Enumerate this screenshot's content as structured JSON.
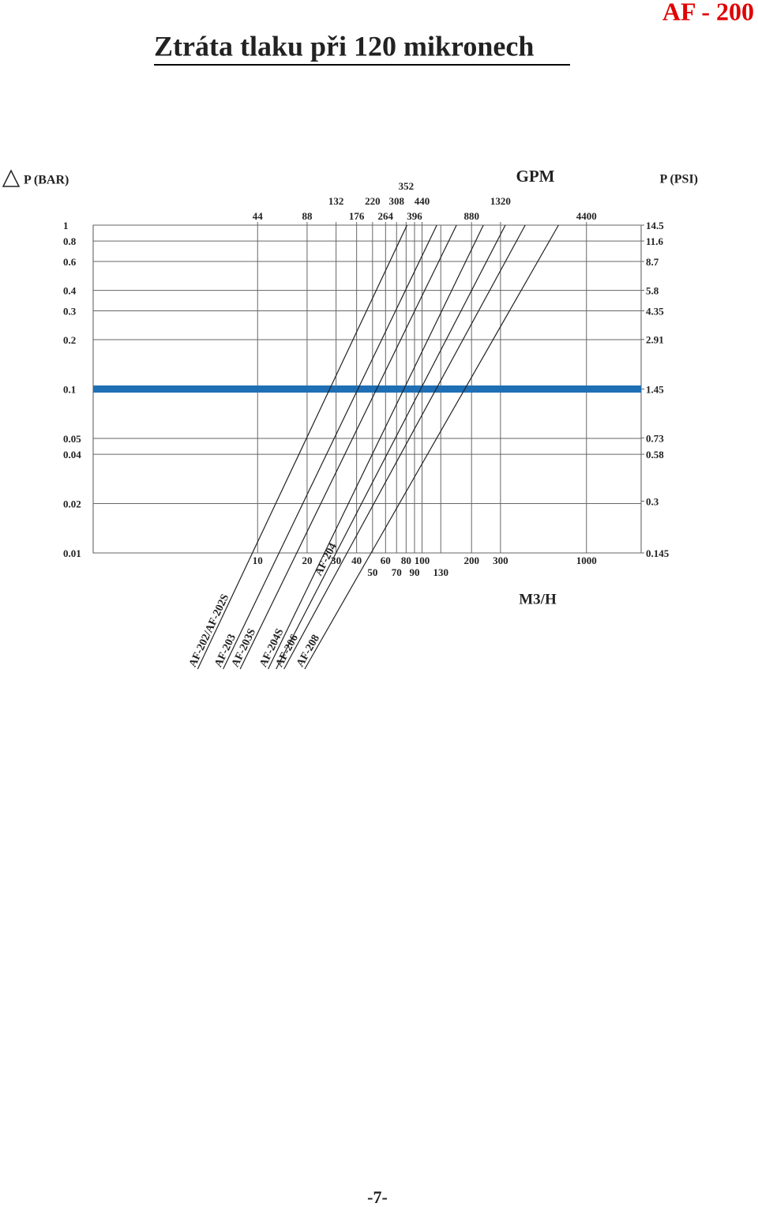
{
  "header": {
    "title": "Ztráta tlaku při 120 mikronech",
    "badge": "AF - 200"
  },
  "footer": {
    "page": "-7-"
  },
  "chart_data": {
    "type": "line",
    "y_label": "P (BAR)",
    "y2_label": "P (PSI)",
    "x_label": "M3/H",
    "x2_label": "GPM",
    "log_x": true,
    "log_y": true,
    "grid": true,
    "xlim": [
      1,
      2150
    ],
    "x2lim": [
      4.4,
      9460
    ],
    "ylim": [
      0.01,
      1
    ],
    "y2lim": [
      0.145,
      14.5
    ],
    "xticks": [
      10,
      20,
      30,
      40,
      50,
      60,
      70,
      80,
      90,
      100,
      130,
      200,
      300,
      1000
    ],
    "x2ticks": [
      44,
      88,
      132,
      176,
      220,
      264,
      308,
      352,
      396,
      440,
      880,
      1320,
      4400
    ],
    "yticks": [
      1,
      0.8,
      0.6,
      0.4,
      0.3,
      0.2,
      0.1,
      0.05,
      0.04,
      0.02,
      0.01
    ],
    "y2ticks": [
      14.5,
      11.6,
      8.7,
      5.8,
      4.35,
      2.91,
      1.45,
      0.73,
      0.58,
      0.3,
      0.145
    ],
    "highlight_y": 0.1,
    "highlight_color": "#1f6fb5",
    "series": [
      {
        "name": "AF-202/AF-202S",
        "color": "#222222",
        "x": [
          9.3,
          81
        ],
        "values": [
          0.01,
          1
        ]
      },
      {
        "name": "AF-203",
        "color": "#222222",
        "x": [
          13.5,
          123
        ],
        "values": [
          0.01,
          1
        ]
      },
      {
        "name": "AF-203S",
        "color": "#222222",
        "x": [
          17.3,
          162
        ],
        "values": [
          0.01,
          1
        ]
      },
      {
        "name": "AF-204S",
        "color": "#222222",
        "x": [
          25.5,
          236
        ],
        "values": [
          0.01,
          1
        ]
      },
      {
        "name": "AF-204",
        "color": "#222222",
        "x": [
          30,
          321
        ],
        "values": [
          0.01,
          1
        ]
      },
      {
        "name": "AF-206",
        "color": "#222222",
        "x": [
          35,
          424
        ],
        "values": [
          0.01,
          1
        ]
      },
      {
        "name": "AF-208",
        "color": "#222222",
        "x": [
          49,
          676
        ],
        "values": [
          0.01,
          1
        ]
      }
    ]
  }
}
